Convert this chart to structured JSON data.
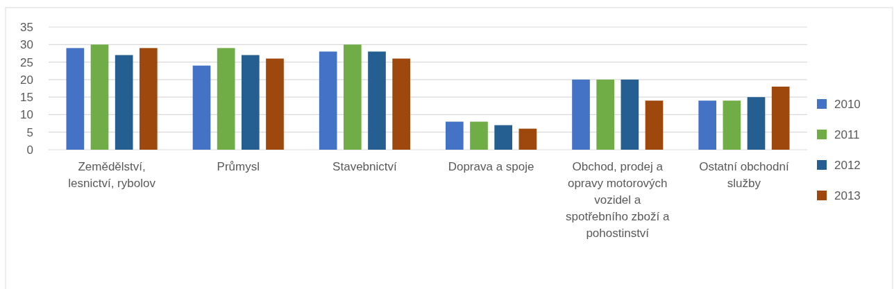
{
  "chart_data": {
    "type": "bar",
    "categories": [
      "Zemědělství, lesnictví, rybolov",
      "Průmysl",
      "Stavebnictví",
      "Doprava a spoje",
      "Obchod, prodej a opravy motorových vozidel a spotřebního zboží a pohostinství",
      "Ostatní obchodní služby"
    ],
    "series": [
      {
        "name": "2010",
        "color": "#4472c4",
        "values": [
          29,
          24,
          28,
          8,
          20,
          14
        ]
      },
      {
        "name": "2011",
        "color": "#70ad47",
        "values": [
          30,
          29,
          30,
          8,
          20,
          14
        ]
      },
      {
        "name": "2012",
        "color": "#255e91",
        "values": [
          27,
          27,
          28,
          7,
          20,
          15
        ]
      },
      {
        "name": "2013",
        "color": "#9e480e",
        "values": [
          29,
          26,
          26,
          6,
          14,
          18
        ]
      }
    ],
    "ylim": [
      0,
      35
    ],
    "yticks": [
      0,
      5,
      10,
      15,
      20,
      25,
      30,
      35
    ],
    "grid": true,
    "legend": "right"
  }
}
